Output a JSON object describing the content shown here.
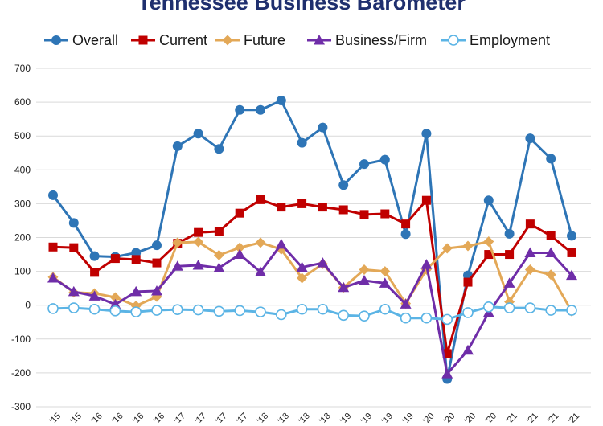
{
  "chart_data": {
    "type": "line",
    "title": "Tennessee Business Barometer",
    "xlabel": "",
    "ylabel": "",
    "ylim": [
      -300,
      700
    ],
    "yticks": [
      700,
      600,
      500,
      400,
      300,
      200,
      100,
      0,
      -100,
      -200,
      -300
    ],
    "grid": true,
    "legend_position": "top",
    "categories": [
      "'15",
      "'15",
      "'16",
      "'16",
      "'16",
      "'16",
      "'17",
      "'17",
      "'17",
      "'17",
      "'18",
      "'18",
      "'18",
      "'18",
      "'19",
      "'19",
      "'19",
      "'19",
      "'20",
      "'20",
      "'20",
      "'20",
      "'21",
      "'21",
      "'21",
      "'21"
    ],
    "series": [
      {
        "name": "Overall",
        "color": "#2e75b6",
        "marker": "circle",
        "values": [
          325,
          243,
          145,
          143,
          155,
          177,
          470,
          507,
          462,
          577,
          577,
          605,
          480,
          525,
          355,
          417,
          430,
          210,
          507,
          -218,
          88,
          310,
          211,
          493,
          433,
          205
        ]
      },
      {
        "name": "Current",
        "color": "#c00000",
        "marker": "square",
        "values": [
          172,
          170,
          97,
          138,
          135,
          125,
          183,
          215,
          218,
          272,
          312,
          290,
          300,
          290,
          282,
          268,
          270,
          240,
          310,
          -143,
          68,
          150,
          150,
          240,
          205,
          155
        ]
      },
      {
        "name": "Future",
        "color": "#e3a857",
        "marker": "diamond",
        "values": [
          83,
          38,
          35,
          23,
          -2,
          25,
          185,
          187,
          148,
          170,
          185,
          165,
          80,
          122,
          52,
          105,
          100,
          5,
          105,
          168,
          175,
          188,
          10,
          105,
          90,
          -18
        ]
      },
      {
        "name": "Business/Firm",
        "color": "#6f2da8",
        "marker": "triangle",
        "values": [
          80,
          40,
          27,
          2,
          40,
          42,
          115,
          118,
          110,
          150,
          98,
          180,
          112,
          125,
          52,
          73,
          65,
          3,
          120,
          -203,
          -133,
          -22,
          65,
          155,
          155,
          88
        ]
      },
      {
        "name": "Employment",
        "color": "#5bb4e5",
        "marker": "open-circle",
        "values": [
          -10,
          -8,
          -12,
          -17,
          -20,
          -15,
          -13,
          -14,
          -18,
          -16,
          -20,
          -28,
          -12,
          -12,
          -30,
          -32,
          -12,
          -38,
          -38,
          -42,
          -22,
          -5,
          -8,
          -8,
          -15,
          -15
        ]
      }
    ]
  }
}
